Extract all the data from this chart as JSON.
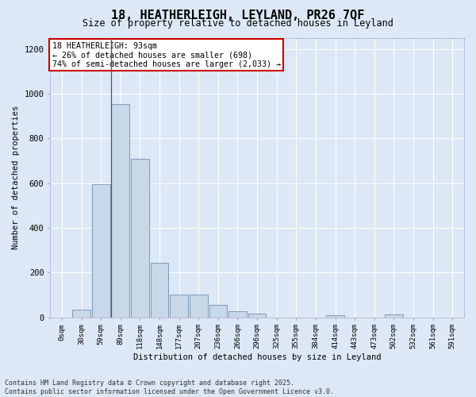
{
  "title_line1": "18, HEATHERLEIGH, LEYLAND, PR26 7QF",
  "title_line2": "Size of property relative to detached houses in Leyland",
  "xlabel": "Distribution of detached houses by size in Leyland",
  "ylabel": "Number of detached properties",
  "bar_color": "#c8d8e8",
  "bar_edge_color": "#7090b0",
  "annotation_line_color": "#555555",
  "categories": [
    "0sqm",
    "30sqm",
    "59sqm",
    "89sqm",
    "118sqm",
    "148sqm",
    "177sqm",
    "207sqm",
    "236sqm",
    "266sqm",
    "296sqm",
    "325sqm",
    "355sqm",
    "384sqm",
    "414sqm",
    "443sqm",
    "473sqm",
    "502sqm",
    "532sqm",
    "561sqm",
    "591sqm"
  ],
  "values": [
    0,
    35,
    595,
    955,
    710,
    245,
    100,
    100,
    55,
    28,
    15,
    0,
    0,
    0,
    8,
    0,
    0,
    14,
    0,
    0,
    0
  ],
  "ylim": [
    0,
    1250
  ],
  "yticks": [
    0,
    200,
    400,
    600,
    800,
    1000,
    1200
  ],
  "prop_value": 93,
  "prop_bar_index": 3,
  "annotation_text_line1": "18 HEATHERLEIGH: 93sqm",
  "annotation_text_line2": "← 26% of detached houses are smaller (698)",
  "annotation_text_line3": "74% of semi-detached houses are larger (2,033) →",
  "annotation_box_color": "#ffffff",
  "annotation_box_edge_color": "#cc0000",
  "footer_line1": "Contains HM Land Registry data © Crown copyright and database right 2025.",
  "footer_line2": "Contains public sector information licensed under the Open Government Licence v3.0.",
  "background_color": "#dce8f5",
  "plot_bg_color": "#dce8f5",
  "grid_color": "#ffffff",
  "figsize": [
    6.0,
    5.0
  ],
  "dpi": 100
}
